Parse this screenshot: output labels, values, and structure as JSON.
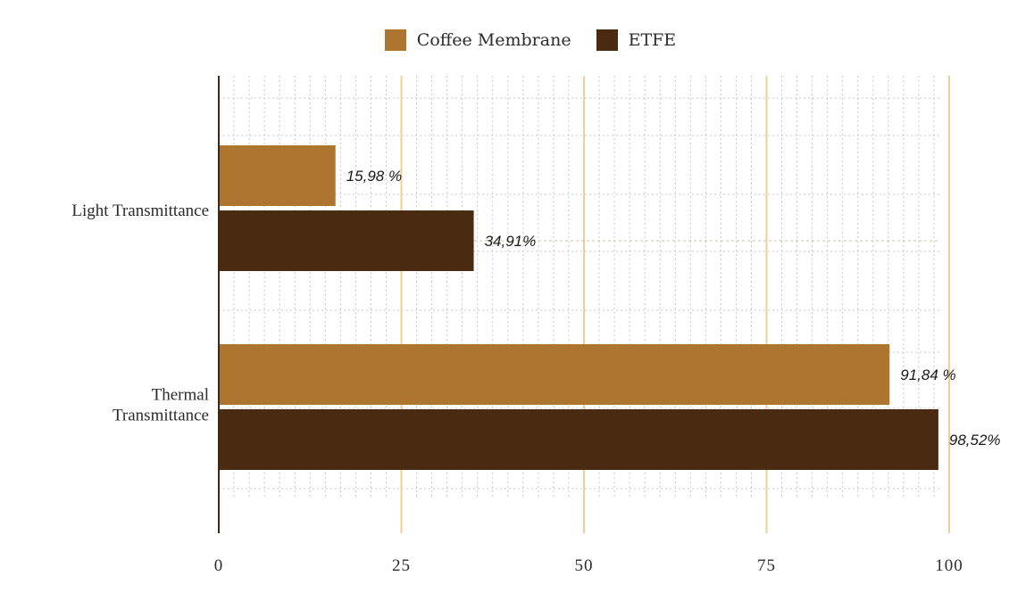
{
  "chart_data": {
    "type": "bar",
    "orientation": "horizontal",
    "categories": [
      "Light Transmittance",
      "Thermal Transmittance"
    ],
    "category_label_lines": [
      [
        "Light Transmittance"
      ],
      [
        "Thermal",
        "Transmittance"
      ]
    ],
    "series": [
      {
        "name": "Coffee Membrane",
        "color": "#ae7530",
        "values": [
          15.98,
          91.84
        ],
        "labels": [
          "15,98 %",
          "91,84 %"
        ]
      },
      {
        "name": "ETFE",
        "color": "#4a2b12",
        "values": [
          34.91,
          98.52
        ],
        "labels": [
          "34,91%",
          "98,52%"
        ]
      }
    ],
    "x_ticks": [
      0,
      25,
      50,
      75,
      100
    ],
    "x_tick_labels": [
      "0",
      "25",
      "50",
      "75",
      "100"
    ],
    "xlim": [
      0,
      100
    ],
    "title": "",
    "xlabel": "",
    "ylabel": "",
    "grid": true,
    "legend_position": "top",
    "colors": {
      "major_gridline": "#f0cf94",
      "minor_gridline": "#c8c8c8",
      "axis": "#3a2a1a",
      "label_text": "#2b2b2b"
    }
  }
}
